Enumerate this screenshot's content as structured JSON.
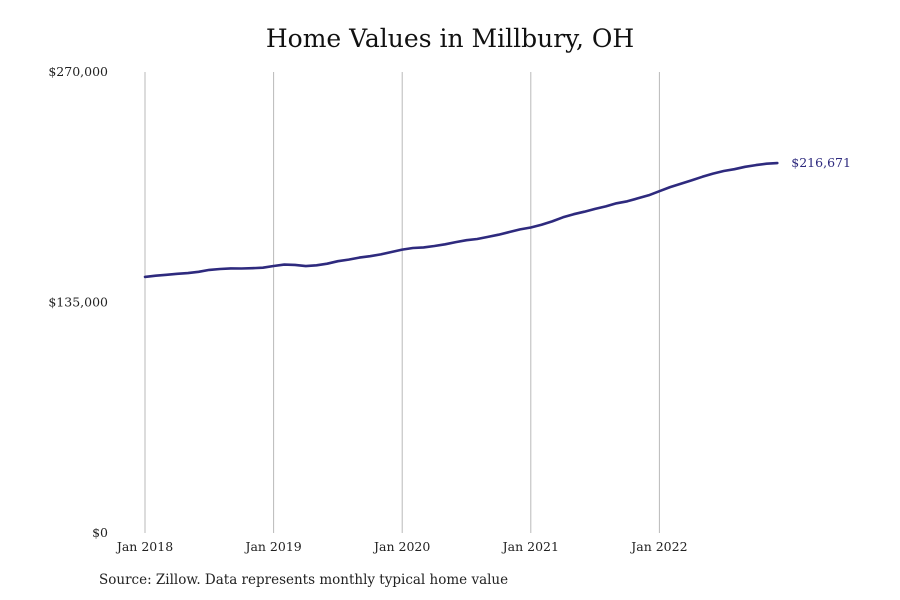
{
  "chart_data": {
    "type": "line",
    "title": "Home Values in Millbury, OH",
    "xlabel": "",
    "ylabel": "",
    "ylim": [
      0,
      270000
    ],
    "yticks": [
      {
        "value": 0,
        "label": "$0"
      },
      {
        "value": 135000,
        "label": "$135,000"
      },
      {
        "value": 270000,
        "label": "$270,000"
      }
    ],
    "xticks": [
      {
        "value": "2018-01",
        "label": "Jan 2018"
      },
      {
        "value": "2019-01",
        "label": "Jan 2019"
      },
      {
        "value": "2020-01",
        "label": "Jan 2020"
      },
      {
        "value": "2021-01",
        "label": "Jan 2021"
      },
      {
        "value": "2022-01",
        "label": "Jan 2022"
      }
    ],
    "grid": {
      "vertical": true,
      "horizontal": false
    },
    "series": [
      {
        "color": "#2e2a7e",
        "x": [
          "2018-01",
          "2018-02",
          "2018-03",
          "2018-04",
          "2018-05",
          "2018-06",
          "2018-07",
          "2018-08",
          "2018-09",
          "2018-10",
          "2018-11",
          "2018-12",
          "2019-01",
          "2019-02",
          "2019-03",
          "2019-04",
          "2019-05",
          "2019-06",
          "2019-07",
          "2019-08",
          "2019-09",
          "2019-10",
          "2019-11",
          "2019-12",
          "2020-01",
          "2020-02",
          "2020-03",
          "2020-04",
          "2020-05",
          "2020-06",
          "2020-07",
          "2020-08",
          "2020-09",
          "2020-10",
          "2020-11",
          "2020-12",
          "2021-01",
          "2021-02",
          "2021-03",
          "2021-04",
          "2021-05",
          "2021-06",
          "2021-07",
          "2021-08",
          "2021-09",
          "2021-10",
          "2021-11",
          "2021-12",
          "2022-01",
          "2022-02",
          "2022-03",
          "2022-04",
          "2022-05",
          "2022-06",
          "2022-07",
          "2022-08",
          "2022-09",
          "2022-10",
          "2022-11",
          "2022-12"
        ],
        "values": [
          150000,
          150700,
          151200,
          151800,
          152200,
          153000,
          154100,
          154600,
          155000,
          154900,
          155100,
          155400,
          156400,
          157200,
          157000,
          156300,
          156800,
          157700,
          159200,
          160100,
          161300,
          162100,
          163200,
          164600,
          166000,
          166900,
          167300,
          168100,
          169100,
          170400,
          171500,
          172200,
          173400,
          174700,
          176300,
          177800,
          178900,
          180500,
          182500,
          184900,
          186700,
          188200,
          189800,
          191300,
          193100,
          194300,
          196000,
          197800,
          200200,
          202600,
          204600,
          206500,
          208600,
          210500,
          212000,
          213100,
          214500,
          215500,
          216300,
          216671
        ]
      }
    ],
    "annotations": [
      {
        "x": "2022-12",
        "y": 216671,
        "label": "$216,671",
        "color": "#2e2a7e"
      }
    ]
  },
  "source": "Source: Zillow. Data represents monthly typical home value"
}
